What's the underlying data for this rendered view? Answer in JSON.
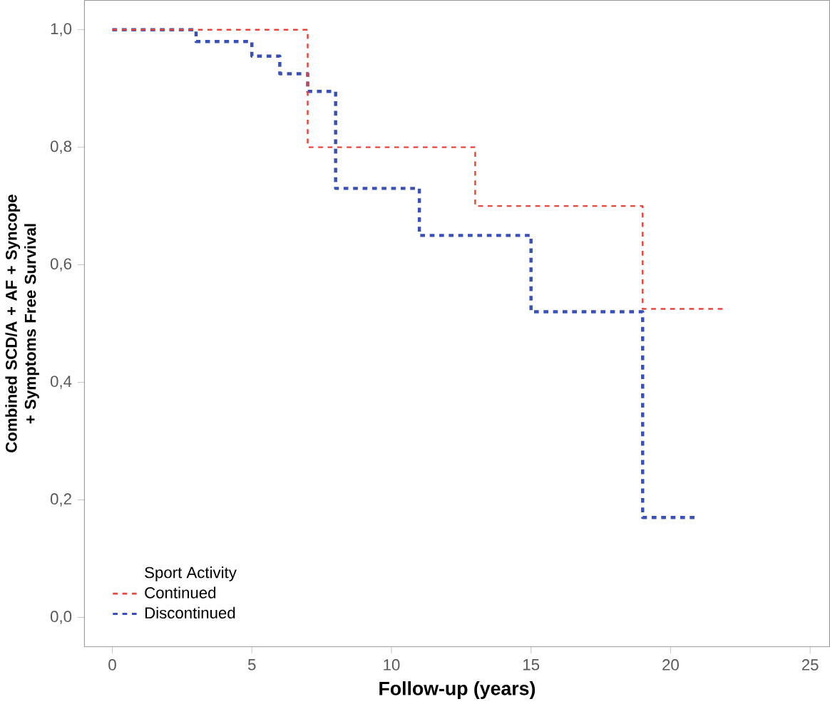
{
  "chart_data": {
    "type": "step",
    "xlabel": "Follow-up (years)",
    "ylabel": "Combined SCD/A + AF + Syncope + Symptoms Free Survival",
    "legend_title": "Sport Activity",
    "series": [
      {
        "name": "Continued",
        "color": "#e8453c",
        "x": [
          0,
          7,
          13,
          19,
          22
        ],
        "values": [
          1.0,
          0.8,
          0.7,
          0.525,
          0.525
        ]
      },
      {
        "name": "Discontinued",
        "color": "#3b4fb8",
        "x": [
          0,
          3,
          5,
          6,
          7,
          8,
          11,
          15,
          19,
          21
        ],
        "values": [
          1.0,
          0.98,
          0.955,
          0.925,
          0.895,
          0.73,
          0.65,
          0.52,
          0.17,
          0.17
        ]
      }
    ],
    "xlim": [
      -1,
      25.7
    ],
    "ylim": [
      -0.05,
      1.05
    ],
    "xticks": [
      0,
      5,
      10,
      15,
      20,
      25
    ],
    "yticks": [
      {
        "value": 0.0,
        "label": "0,0"
      },
      {
        "value": 0.2,
        "label": "0,2"
      },
      {
        "value": 0.4,
        "label": "0,4"
      },
      {
        "value": 0.6,
        "label": "0,6"
      },
      {
        "value": 0.8,
        "label": "0,8"
      },
      {
        "value": 1.0,
        "label": "1,0"
      }
    ],
    "legend": "bottom left",
    "line_style": "dashed",
    "grid": false
  }
}
